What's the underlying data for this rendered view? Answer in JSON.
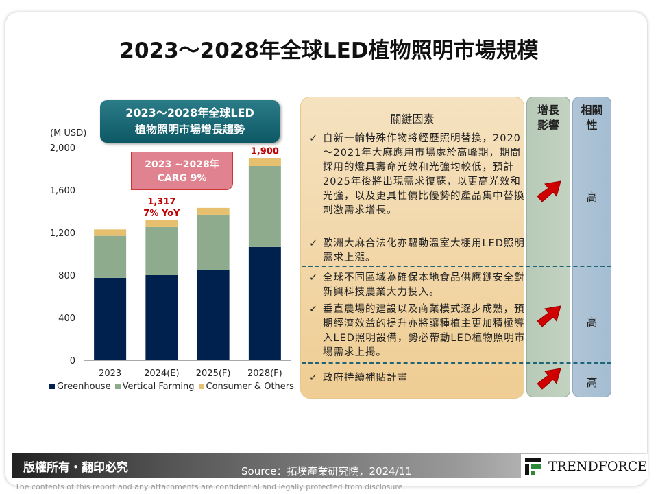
{
  "title": "2023～2028年全球LED植物照明市場規模",
  "chart_banner": [
    "2023～2028年全球LED",
    "植物照明市場增長趨勢"
  ],
  "cagr_box": [
    "2023 ~2028年",
    "CARG 9%"
  ],
  "chart_data": {
    "type": "bar",
    "stacked": true,
    "ylabel": "(M USD)",
    "ylim": [
      0,
      2000
    ],
    "yticks": [
      "0",
      "400",
      "800",
      "1,200",
      "1,600",
      "2,000"
    ],
    "ytick_values": [
      0,
      400,
      800,
      1200,
      1600,
      2000
    ],
    "categories": [
      "2023",
      "2024(E)",
      "2025(F)",
      "2028(F)"
    ],
    "series": [
      {
        "name": "Greenhouse",
        "color": "#00204d",
        "values": [
          775,
          800,
          850,
          1065
        ]
      },
      {
        "name": "Vertical Farming",
        "color": "#8eab8e",
        "values": [
          395,
          452,
          518,
          761
        ]
      },
      {
        "name": "Consumer & Others",
        "color": "#e6c06e",
        "values": [
          60,
          65,
          65,
          74
        ]
      }
    ],
    "annotations": [
      {
        "category": "2024(E)",
        "lines": [
          "1,317",
          "7% YoY"
        ],
        "color": "#c00000"
      },
      {
        "category": "2028(F)",
        "lines": [
          "1,900"
        ],
        "color": "#c00000"
      }
    ],
    "legend": "bottom"
  },
  "factors": {
    "heading": "關鍵因素",
    "items": [
      "自新一輪特殊作物將經歷照明替換，2020～2021年大麻應用市場處於高峰期，期間採用的燈具壽命光效和光強均較低，預計2025年後將出現需求復蘇，以更高光效和光強，以及更具性價比優勢的產品集中替換刺激需求增長。",
      "歐洲大麻合法化亦驅動溫室大棚用LED照明需求上漲。",
      "全球不同區域為確保本地食品供應鏈安全對新興科技農業大力投入。",
      "垂直農場的建設以及商業模式逐步成熟，預期經濟效益的提升亦將讓種植主更加積極導入LED照明設備，勢必帶動LED植物照明市場需求上揚。",
      "政府持續補貼計畫"
    ]
  },
  "growth_col": {
    "heading": [
      "增長",
      "影響"
    ],
    "icon": "up-right-arrow-icon",
    "arrow_color": "#d00000"
  },
  "relevance_col": {
    "heading": [
      "相關",
      "性"
    ],
    "values": [
      "高",
      "高",
      "高"
    ]
  },
  "footer": {
    "copyright": "版權所有・翻印必究",
    "source": "Source：拓墣產業研究院，2024/11",
    "logo": "TRENDFORCE"
  },
  "disclaimer": "The contents of this report and any attachments are confidential and legally protected from disclosure."
}
